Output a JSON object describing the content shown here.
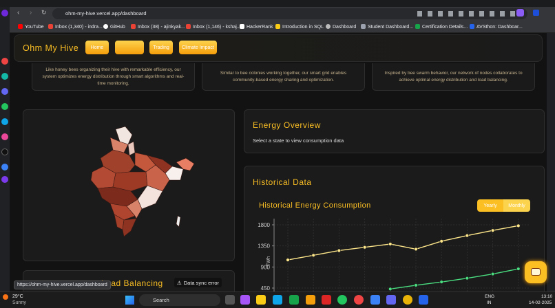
{
  "browser": {
    "url": "ohm-my-hive.vercel.app/dashboard",
    "bookmarks": [
      "YouTube",
      "Inbox (1,340) - indra...",
      "GitHub",
      "Inbox (38) - ajinkyak...",
      "Inbox (1,146) - kshaj...",
      "HackerRank",
      "Introduction in SQL",
      "Dashboard",
      "Student Dashboard...",
      "Certification Details...",
      "AVSthon: Dashboar..."
    ],
    "status_url": "https://ohm-my-hive.vercel.app/dashboard"
  },
  "header": {
    "brand": "Ohm My Hive",
    "nav": [
      "Home",
      "Trading",
      "Climate Impact"
    ]
  },
  "features": [
    "Like honey bees organizing their hive with remarkable efficiency, our system optimizes energy distribution through smart algorithms and real-time monitoring.",
    "Similar to bee colonies working together, our smart grid enables community-based energy sharing and optimization.",
    "Inspired by bee swarm behavior, our network of nodes collaborates to achieve optimal energy distribution and load balancing."
  ],
  "energy_overview": {
    "title": "Energy Overview",
    "subtitle": "Select a state to view consumption data"
  },
  "historical": {
    "title": "Historical Data",
    "chart": {
      "title": "Historical Energy Consumption",
      "toggle": [
        "Yearly",
        "Monthly"
      ],
      "y_label": "TWh",
      "yticks": [
        450,
        900,
        1350,
        1800
      ],
      "grid": true,
      "series": [
        {
          "color": "#fde68a",
          "values": [
            1050,
            1150,
            1250,
            1320,
            1390,
            1280,
            1450,
            1570,
            1680,
            1780
          ]
        },
        {
          "color": "#4ade80",
          "values": [
            null,
            null,
            null,
            null,
            430,
            510,
            580,
            660,
            750,
            860
          ]
        }
      ]
    }
  },
  "load_balancing": {
    "title": "Load Balancing",
    "status": "Data sync error"
  },
  "taskbar": {
    "temperature": "29°C",
    "weather": "Sunny",
    "search": "Search",
    "language": "ENG",
    "region": "IN",
    "time": "13:10",
    "date": "14-02-2025"
  }
}
